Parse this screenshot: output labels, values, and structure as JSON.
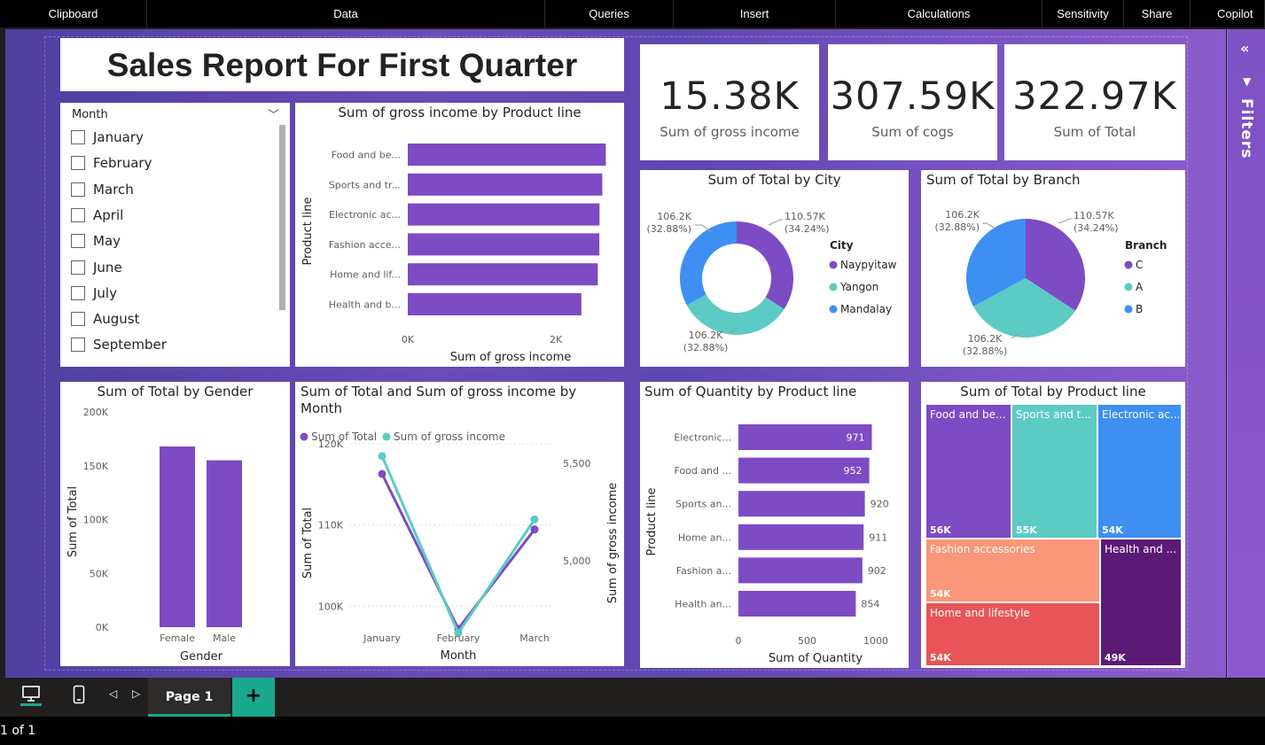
{
  "toolbar": {
    "items": [
      {
        "label": "Clipboard",
        "w": 0
      },
      {
        "label": "Data"
      },
      {
        "label": "Queries"
      },
      {
        "label": "Insert"
      },
      {
        "label": "Calculations"
      },
      {
        "label": "Sensitivity"
      },
      {
        "label": "Share"
      },
      {
        "label": "Copilot"
      }
    ]
  },
  "report": {
    "title": "Sales Report For First Quarter",
    "kpis": [
      {
        "value": "15.38K",
        "label": "Sum of gross income"
      },
      {
        "value": "307.59K",
        "label": "Sum of cogs"
      },
      {
        "value": "322.97K",
        "label": "Sum of Total"
      }
    ],
    "filters_label": "Filters"
  },
  "slicer": {
    "header": "Month",
    "months": [
      "January",
      "February",
      "March",
      "April",
      "May",
      "June",
      "July",
      "August",
      "September"
    ]
  },
  "chart_data": [
    {
      "id": "gross_income_by_product",
      "type": "bar",
      "title": "Sum of gross income by Product line",
      "categories": [
        "Food and be...",
        "Sports and tr...",
        "Electronic ac...",
        "Fashion acce...",
        "Home and lif...",
        "Health and b..."
      ],
      "values": [
        2673,
        2625,
        2588,
        2586,
        2565,
        2343
      ],
      "xlabel": "Sum of gross income",
      "ylabel": "Product line",
      "xticks": [
        "0K",
        "2K"
      ],
      "xlim": [
        0,
        2800
      ]
    },
    {
      "id": "total_by_city",
      "type": "pie",
      "donut": true,
      "title": "Sum of Total by City",
      "legend_title": "City",
      "labels": [
        "Naypyitaw",
        "Yangon",
        "Mandalay"
      ],
      "values": [
        110.57,
        106.2,
        106.2
      ],
      "data_labels": [
        [
          "110.57K",
          "(34.24%)"
        ],
        [
          "106.2K",
          "(32.88%)"
        ],
        [
          "106.2K",
          "(32.88%)"
        ]
      ],
      "colors": [
        "#7d4bc4",
        "#5bcbc4",
        "#3d8ff2"
      ]
    },
    {
      "id": "total_by_branch",
      "type": "pie",
      "donut": false,
      "title": "Sum of Total by Branch",
      "legend_title": "Branch",
      "labels": [
        "C",
        "A",
        "B"
      ],
      "values": [
        110.57,
        106.2,
        106.2
      ],
      "data_labels": [
        [
          "110.57K",
          "(34.24%)"
        ],
        [
          "106.2K",
          "(32.88%)"
        ],
        [
          "106.2K",
          "(32.88%)"
        ]
      ],
      "colors": [
        "#7d4bc4",
        "#5bcbc4",
        "#3d8ff2"
      ]
    },
    {
      "id": "total_by_gender",
      "type": "bar",
      "title": "Sum of Total by Gender",
      "categories": [
        "Female",
        "Male"
      ],
      "values": [
        167883,
        155084
      ],
      "xlabel": "Gender",
      "ylabel": "Sum of Total",
      "yticks": [
        "0K",
        "50K",
        "100K",
        "150K",
        "200K"
      ],
      "ylim": [
        0,
        200000
      ]
    },
    {
      "id": "total_gross_by_month",
      "type": "line",
      "title": "Sum of Total and Sum of gross income by Month",
      "categories": [
        "January",
        "February",
        "March"
      ],
      "series": [
        {
          "name": "Sum of Total",
          "axis": "left",
          "values": [
            116292,
            97219,
            109456
          ],
          "color": "#7d4bc4"
        },
        {
          "name": "Sum of gross income",
          "axis": "right",
          "values": [
            5537,
            4629,
            5212
          ],
          "color": "#5bcbc4"
        }
      ],
      "xlabel": "Month",
      "ylabel": "Sum of Total",
      "ylabel_right": "Sum of gross income",
      "yticks_left": [
        "100K",
        "110K",
        "120K"
      ],
      "yticks_right": [
        "5,000",
        "5,500"
      ],
      "ylim_left": [
        96000,
        120000
      ],
      "ylim_right": [
        4600,
        5600
      ]
    },
    {
      "id": "quantity_by_product",
      "type": "bar",
      "title": "Sum of Quantity by Product line",
      "categories": [
        "Electronic...",
        "Food and ...",
        "Sports an...",
        "Home an...",
        "Fashion a...",
        "Health an..."
      ],
      "values": [
        971,
        952,
        920,
        911,
        902,
        854
      ],
      "xlabel": "Sum of Quantity",
      "ylabel": "Product line",
      "xticks": [
        "0",
        "500",
        "1000"
      ],
      "xlim": [
        0,
        1000
      ]
    },
    {
      "id": "total_by_product_treemap",
      "type": "treemap",
      "title": "Sum of Total by Product line",
      "tiles": [
        {
          "label": "Food and be...",
          "value": "56K",
          "color": "#7d4bc4"
        },
        {
          "label": "Sports and t...",
          "value": "55K",
          "color": "#5bcbc4"
        },
        {
          "label": "Electronic ac...",
          "value": "54K",
          "color": "#3d8ff2"
        },
        {
          "label": "Fashion accessories",
          "value": "54K",
          "color": "#fa9679"
        },
        {
          "label": "Health and ...",
          "value": "49K",
          "color": "#5b1a75"
        },
        {
          "label": "Home and lifestyle",
          "value": "54K",
          "color": "#e85457"
        }
      ]
    }
  ],
  "footer": {
    "page_tab": "Page 1",
    "status": "1 of 1"
  }
}
